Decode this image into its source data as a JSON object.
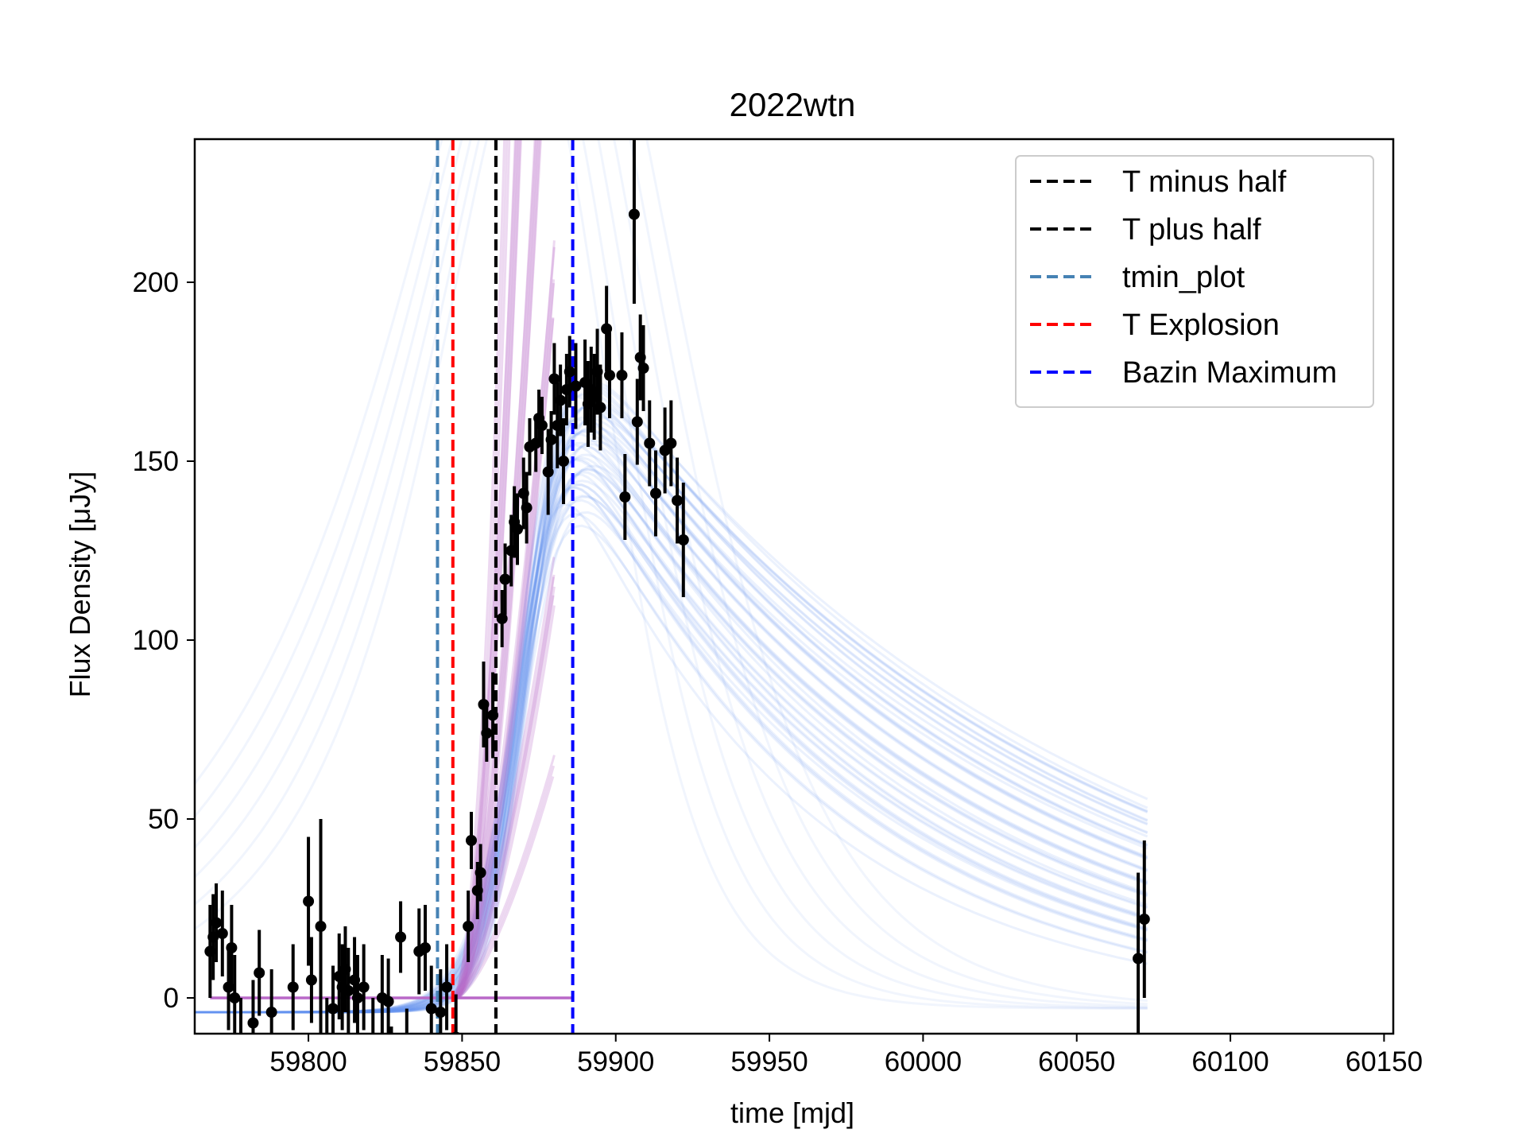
{
  "chart_data": {
    "type": "scatter",
    "title": "2022wtn",
    "xlabel": "time [mjd]",
    "ylabel": "Flux Density [μJy]",
    "xlim": [
      59763,
      60153
    ],
    "ylim": [
      -10,
      240
    ],
    "xticks": [
      59800,
      59850,
      59900,
      59950,
      60000,
      60050,
      60100,
      60150
    ],
    "yticks": [
      0,
      50,
      100,
      150,
      200
    ],
    "grid": false,
    "legend_position": "top-right",
    "legend": [
      {
        "label": "T minus half",
        "color": "#000000",
        "style": "dashed"
      },
      {
        "label": "T plus half",
        "color": "#000000",
        "style": "dashed"
      },
      {
        "label": "tmin_plot",
        "color": "#4682b4",
        "style": "dashed"
      },
      {
        "label": "T Explosion",
        "color": "#ff0000",
        "style": "dashed"
      },
      {
        "label": "Bazin Maximum",
        "color": "#0000ff",
        "style": "dashed"
      }
    ],
    "vlines": [
      {
        "name": "tmin_plot",
        "x": 59842,
        "color": "#4682b4"
      },
      {
        "name": "T Explosion",
        "x": 59847,
        "color": "#ff0000"
      },
      {
        "name": "T minus half",
        "x": 59861,
        "color": "#000000"
      },
      {
        "name": "T plus half",
        "x": 59861,
        "color": "#000000"
      },
      {
        "name": "Bazin Maximum",
        "x": 59886,
        "color": "#0000ff"
      }
    ],
    "baseline_segment": {
      "x0": 59768,
      "x1": 59886,
      "y": 0,
      "color": "#b968c8"
    },
    "observations": [
      {
        "x": 59768,
        "y": 13,
        "err": 13
      },
      {
        "x": 59769,
        "y": 17,
        "err": 12
      },
      {
        "x": 59770,
        "y": 21,
        "err": 11
      },
      {
        "x": 59772,
        "y": 18,
        "err": 12
      },
      {
        "x": 59774,
        "y": 3,
        "err": 12
      },
      {
        "x": 59775,
        "y": 14,
        "err": 12
      },
      {
        "x": 59776,
        "y": 0,
        "err": 12
      },
      {
        "x": 59778,
        "y": -12,
        "err": 12
      },
      {
        "x": 59782,
        "y": -7,
        "err": 12
      },
      {
        "x": 59784,
        "y": 7,
        "err": 12
      },
      {
        "x": 59788,
        "y": -4,
        "err": 12
      },
      {
        "x": 59795,
        "y": 3,
        "err": 12
      },
      {
        "x": 59800,
        "y": 27,
        "err": 18
      },
      {
        "x": 59801,
        "y": 5,
        "err": 12
      },
      {
        "x": 59804,
        "y": 20,
        "err": 30
      },
      {
        "x": 59806,
        "y": -12,
        "err": 12
      },
      {
        "x": 59808,
        "y": -3,
        "err": 12
      },
      {
        "x": 59810,
        "y": 6,
        "err": 12
      },
      {
        "x": 59811,
        "y": 3,
        "err": 12
      },
      {
        "x": 59812,
        "y": 8,
        "err": 12
      },
      {
        "x": 59813,
        "y": 2,
        "err": 12
      },
      {
        "x": 59815,
        "y": 5,
        "err": 12
      },
      {
        "x": 59816,
        "y": 0,
        "err": 12
      },
      {
        "x": 59818,
        "y": 3,
        "err": 12
      },
      {
        "x": 59821,
        "y": -12,
        "err": 12
      },
      {
        "x": 59824,
        "y": 0,
        "err": 12
      },
      {
        "x": 59826,
        "y": -1,
        "err": 12
      },
      {
        "x": 59827,
        "y": -20,
        "err": 12
      },
      {
        "x": 59830,
        "y": 17,
        "err": 10
      },
      {
        "x": 59832,
        "y": -15,
        "err": 12
      },
      {
        "x": 59836,
        "y": 13,
        "err": 12
      },
      {
        "x": 59838,
        "y": 14,
        "err": 12
      },
      {
        "x": 59840,
        "y": -3,
        "err": 12
      },
      {
        "x": 59843,
        "y": -4,
        "err": 12
      },
      {
        "x": 59845,
        "y": 3,
        "err": 12
      },
      {
        "x": 59848,
        "y": -11,
        "err": 12
      },
      {
        "x": 59852,
        "y": 20,
        "err": 10
      },
      {
        "x": 59853,
        "y": 44,
        "err": 8
      },
      {
        "x": 59855,
        "y": 30,
        "err": 8
      },
      {
        "x": 59856,
        "y": 35,
        "err": 8
      },
      {
        "x": 59857,
        "y": 82,
        "err": 12
      },
      {
        "x": 59858,
        "y": 74,
        "err": 8
      },
      {
        "x": 59860,
        "y": 79,
        "err": 12
      },
      {
        "x": 59863,
        "y": 106,
        "err": 8
      },
      {
        "x": 59864,
        "y": 117,
        "err": 10
      },
      {
        "x": 59866,
        "y": 125,
        "err": 10
      },
      {
        "x": 59867,
        "y": 133,
        "err": 10
      },
      {
        "x": 59868,
        "y": 131,
        "err": 10
      },
      {
        "x": 59870,
        "y": 141,
        "err": 10
      },
      {
        "x": 59871,
        "y": 137,
        "err": 10
      },
      {
        "x": 59872,
        "y": 154,
        "err": 8
      },
      {
        "x": 59874,
        "y": 155,
        "err": 8
      },
      {
        "x": 59875,
        "y": 162,
        "err": 8
      },
      {
        "x": 59876,
        "y": 160,
        "err": 8
      },
      {
        "x": 59878,
        "y": 147,
        "err": 12
      },
      {
        "x": 59879,
        "y": 156,
        "err": 8
      },
      {
        "x": 59880,
        "y": 173,
        "err": 10
      },
      {
        "x": 59881,
        "y": 160,
        "err": 12
      },
      {
        "x": 59882,
        "y": 167,
        "err": 10
      },
      {
        "x": 59883,
        "y": 150,
        "err": 12
      },
      {
        "x": 59884,
        "y": 170,
        "err": 10
      },
      {
        "x": 59885,
        "y": 175,
        "err": 10
      },
      {
        "x": 59887,
        "y": 171,
        "err": 12
      },
      {
        "x": 59890,
        "y": 172,
        "err": 12
      },
      {
        "x": 59891,
        "y": 166,
        "err": 12
      },
      {
        "x": 59892,
        "y": 170,
        "err": 12
      },
      {
        "x": 59893,
        "y": 168,
        "err": 12
      },
      {
        "x": 59894,
        "y": 175,
        "err": 12
      },
      {
        "x": 59895,
        "y": 165,
        "err": 12
      },
      {
        "x": 59897,
        "y": 187,
        "err": 12
      },
      {
        "x": 59898,
        "y": 174,
        "err": 12
      },
      {
        "x": 59902,
        "y": 174,
        "err": 12
      },
      {
        "x": 59903,
        "y": 140,
        "err": 12
      },
      {
        "x": 59906,
        "y": 219,
        "err": 25
      },
      {
        "x": 59907,
        "y": 161,
        "err": 12
      },
      {
        "x": 59908,
        "y": 179,
        "err": 12
      },
      {
        "x": 59909,
        "y": 176,
        "err": 12
      },
      {
        "x": 59911,
        "y": 155,
        "err": 12
      },
      {
        "x": 59913,
        "y": 141,
        "err": 12
      },
      {
        "x": 59916,
        "y": 153,
        "err": 12
      },
      {
        "x": 59918,
        "y": 155,
        "err": 12
      },
      {
        "x": 59920,
        "y": 139,
        "err": 12
      },
      {
        "x": 59922,
        "y": 128,
        "err": 16
      },
      {
        "x": 60070,
        "y": 11,
        "err": 24
      },
      {
        "x": 60072,
        "y": 22,
        "err": 22
      }
    ]
  }
}
